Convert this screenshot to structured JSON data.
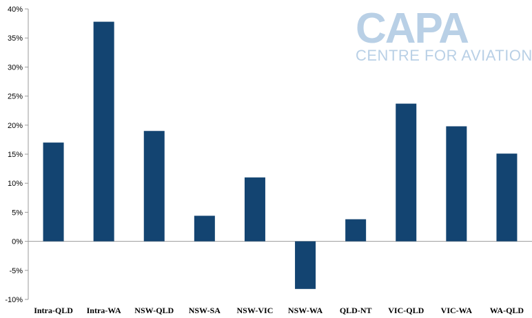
{
  "logo": {
    "main": "CAPA",
    "sub": "CENTRE FOR AVIATION",
    "color": "#b9d0e6"
  },
  "chart_data": {
    "type": "bar",
    "title": "",
    "xlabel": "",
    "ylabel": "",
    "categories": [
      "Intra-QLD",
      "Intra-WA",
      "NSW-QLD",
      "NSW-SA",
      "NSW-VIC",
      "NSW-WA",
      "QLD-NT",
      "VIC-QLD",
      "VIC-WA",
      "WA-QLD"
    ],
    "values": [
      17.0,
      37.8,
      19.0,
      4.4,
      11.0,
      -8.2,
      3.8,
      23.7,
      19.8,
      15.1
    ],
    "ylim": [
      -10,
      40
    ],
    "yticks": [
      -10,
      -5,
      0,
      5,
      10,
      15,
      20,
      25,
      30,
      35,
      40
    ],
    "ytick_labels": [
      "-10%",
      "-5%",
      "0%",
      "5%",
      "10%",
      "15%",
      "20%",
      "25%",
      "30%",
      "35%",
      "40%"
    ],
    "grid": false,
    "legend": "none",
    "bar_color": "#134471",
    "axis_color": "#9a9a9a"
  }
}
